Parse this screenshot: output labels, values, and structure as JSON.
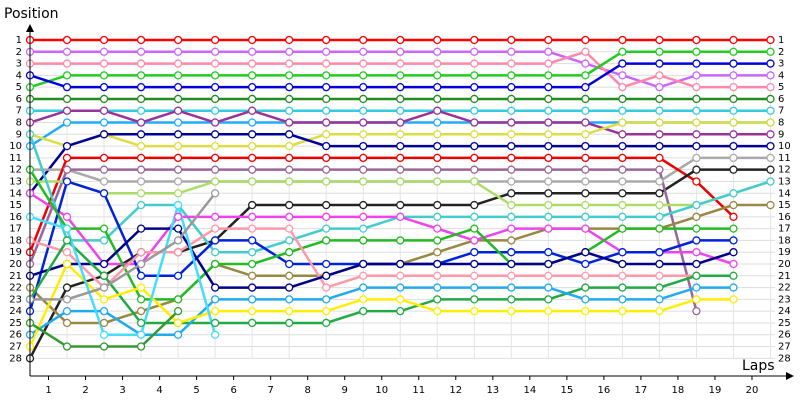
{
  "chart_data": {
    "type": "line",
    "y_label": "Position",
    "x_label": "Laps",
    "x": [
      0,
      1,
      2,
      3,
      4,
      5,
      6,
      7,
      8,
      9,
      10,
      11,
      12,
      13,
      14,
      15,
      16,
      17,
      18,
      19,
      20
    ],
    "xlim": [
      0,
      20.5
    ],
    "xticks": [
      {
        "value": 0.5,
        "label": "1"
      },
      {
        "value": 1.5,
        "label": "2"
      },
      {
        "value": 2.5,
        "label": "3"
      },
      {
        "value": 3.5,
        "label": "4"
      },
      {
        "value": 4.5,
        "label": "5"
      },
      {
        "value": 5.5,
        "label": "6"
      },
      {
        "value": 6.5,
        "label": "7"
      },
      {
        "value": 7.5,
        "label": "8"
      },
      {
        "value": 8.5,
        "label": "9"
      },
      {
        "value": 9.5,
        "label": "10"
      },
      {
        "value": 10.5,
        "label": "11"
      },
      {
        "value": 11.5,
        "label": "12"
      },
      {
        "value": 12.5,
        "label": "13"
      },
      {
        "value": 13.5,
        "label": "14"
      },
      {
        "value": 14.5,
        "label": "15"
      },
      {
        "value": 15.5,
        "label": "16"
      },
      {
        "value": 16.5,
        "label": "17"
      },
      {
        "value": 17.5,
        "label": "18"
      },
      {
        "value": 18.5,
        "label": "19"
      },
      {
        "value": 19.5,
        "label": "20"
      }
    ],
    "ylim": [
      0,
      29.5
    ],
    "y_inverted": true,
    "yticks": [
      1,
      2,
      3,
      4,
      5,
      6,
      7,
      8,
      9,
      10,
      11,
      12,
      13,
      14,
      15,
      16,
      17,
      18,
      19,
      20,
      21,
      22,
      23,
      24,
      25,
      26,
      27,
      28
    ],
    "grid": true,
    "series": [
      {
        "color": "#ff0000",
        "values": [
          1,
          1,
          1,
          1,
          1,
          1,
          1,
          1,
          1,
          1,
          1,
          1,
          1,
          1,
          1,
          1,
          1,
          1,
          1,
          1,
          1
        ]
      },
      {
        "color": "#cc66ff",
        "values": [
          2,
          2,
          2,
          2,
          2,
          2,
          2,
          2,
          2,
          2,
          2,
          2,
          2,
          2,
          2,
          3,
          4,
          5,
          4,
          4,
          4
        ]
      },
      {
        "color": "#ff88aa",
        "values": [
          3,
          3,
          3,
          3,
          3,
          3,
          3,
          3,
          3,
          3,
          3,
          3,
          3,
          3,
          3,
          2,
          5,
          4,
          5,
          5,
          5
        ]
      },
      {
        "color": "#22cc22",
        "values": [
          5,
          4,
          4,
          4,
          4,
          4,
          4,
          4,
          4,
          4,
          4,
          4,
          4,
          4,
          4,
          4,
          2,
          2,
          2,
          2,
          2
        ]
      },
      {
        "color": "#0000dd",
        "values": [
          4,
          5,
          5,
          5,
          5,
          5,
          5,
          5,
          5,
          5,
          5,
          5,
          5,
          5,
          5,
          5,
          3,
          3,
          3,
          3,
          3
        ]
      },
      {
        "color": "#228b22",
        "values": [
          6,
          6,
          6,
          6,
          6,
          6,
          6,
          6,
          6,
          6,
          6,
          6,
          6,
          6,
          6,
          6,
          6,
          6,
          6,
          6,
          6
        ]
      },
      {
        "color": "#33ccdd",
        "values": [
          7,
          7,
          7,
          7,
          7,
          7,
          7,
          7,
          7,
          7,
          7,
          7,
          7,
          7,
          7,
          7,
          7,
          7,
          7,
          7,
          7
        ]
      },
      {
        "color": "#22aaff",
        "values": [
          10,
          8,
          8,
          8,
          8,
          8,
          8,
          8,
          8,
          8,
          8,
          8,
          8,
          8,
          8,
          8,
          8,
          8,
          8,
          8,
          8
        ]
      },
      {
        "color": "#993399",
        "values": [
          8,
          7,
          7,
          8,
          7,
          8,
          7,
          8,
          8,
          8,
          8,
          7,
          8,
          8,
          8,
          8,
          9,
          9,
          9,
          9,
          9
        ]
      },
      {
        "color": "#dddd44",
        "values": [
          9,
          10,
          9,
          10,
          10,
          10,
          10,
          10,
          9,
          9,
          9,
          9,
          9,
          9,
          9,
          9,
          8,
          8,
          8,
          8,
          8
        ]
      },
      {
        "color": "#000099",
        "values": [
          14,
          10,
          9,
          9,
          9,
          9,
          9,
          9,
          10,
          10,
          10,
          10,
          10,
          10,
          10,
          10,
          10,
          10,
          10,
          10,
          10
        ]
      },
      {
        "color": "#aaaaaa",
        "values": [
          12,
          12,
          13,
          13,
          13,
          13,
          13,
          13,
          13,
          13,
          13,
          13,
          13,
          13,
          13,
          13,
          13,
          13,
          11,
          11,
          11
        ]
      },
      {
        "color": "#ee0000",
        "values": [
          19,
          11,
          11,
          11,
          11,
          11,
          11,
          11,
          11,
          11,
          11,
          11,
          11,
          11,
          11,
          11,
          11,
          11,
          13,
          16,
          null
        ]
      },
      {
        "color": "#222222",
        "values": [
          28,
          22,
          21,
          19,
          19,
          18,
          15,
          15,
          15,
          15,
          15,
          15,
          15,
          14,
          14,
          14,
          14,
          14,
          12,
          12,
          12
        ]
      },
      {
        "color": "#996699",
        "values": [
          20,
          12,
          12,
          12,
          12,
          12,
          12,
          12,
          12,
          12,
          12,
          12,
          12,
          12,
          12,
          12,
          12,
          12,
          24,
          null,
          null
        ]
      },
      {
        "color": "#aadd66",
        "values": [
          13,
          13,
          14,
          14,
          14,
          13,
          13,
          13,
          13,
          13,
          13,
          13,
          13,
          15,
          15,
          15,
          15,
          15,
          15,
          14,
          13
        ]
      },
      {
        "color": "#998844",
        "values": [
          22,
          25,
          25,
          24,
          23,
          20,
          21,
          21,
          21,
          20,
          20,
          19,
          18,
          18,
          17,
          17,
          17,
          17,
          16,
          15,
          15
        ]
      },
      {
        "color": "#44cccc",
        "values": [
          9,
          18,
          18,
          15,
          15,
          19,
          19,
          18,
          17,
          17,
          16,
          16,
          16,
          16,
          16,
          16,
          16,
          16,
          15,
          14,
          13
        ]
      },
      {
        "color": "#ee44ee",
        "values": [
          14,
          16,
          20,
          20,
          16,
          16,
          16,
          16,
          16,
          16,
          16,
          17,
          18,
          17,
          17,
          17,
          19,
          19,
          19,
          20,
          null
        ]
      },
      {
        "color": "#0022dd",
        "values": [
          24,
          13,
          14,
          21,
          21,
          18,
          18,
          20,
          20,
          20,
          20,
          20,
          19,
          19,
          19,
          20,
          19,
          19,
          18,
          18,
          null
        ]
      },
      {
        "color": "#22bb22",
        "values": [
          12,
          17,
          17,
          23,
          23,
          20,
          20,
          19,
          18,
          18,
          18,
          18,
          17,
          20,
          20,
          19,
          17,
          17,
          17,
          17,
          null
        ]
      },
      {
        "color": "#ff99aa",
        "values": [
          18,
          19,
          22,
          19,
          19,
          17,
          17,
          17,
          22,
          21,
          21,
          21,
          21,
          21,
          21,
          21,
          21,
          21,
          21,
          null,
          null
        ]
      },
      {
        "color": "#000088",
        "values": [
          21,
          20,
          20,
          17,
          17,
          22,
          22,
          22,
          21,
          20,
          20,
          20,
          20,
          20,
          20,
          19,
          20,
          20,
          20,
          19,
          null
        ]
      },
      {
        "color": "#22aa44",
        "values": [
          23,
          18,
          21,
          25,
          25,
          25,
          25,
          25,
          25,
          24,
          24,
          23,
          23,
          23,
          23,
          22,
          22,
          22,
          21,
          21,
          null
        ]
      },
      {
        "color": "#22aaee",
        "values": [
          26,
          24,
          24,
          26,
          26,
          23,
          23,
          23,
          23,
          22,
          22,
          22,
          22,
          22,
          22,
          23,
          23,
          23,
          22,
          22,
          null
        ]
      },
      {
        "color": "#ffee00",
        "values": [
          27,
          20,
          23,
          22,
          25,
          24,
          24,
          24,
          24,
          23,
          23,
          24,
          24,
          24,
          24,
          24,
          24,
          24,
          23,
          23,
          null
        ]
      },
      {
        "color": "#44ddff",
        "values": [
          16,
          17,
          26,
          26,
          15,
          26,
          null,
          null,
          null,
          null,
          null,
          null,
          null,
          null,
          null,
          null,
          null,
          null,
          null,
          null,
          null
        ]
      },
      {
        "color": "#339933",
        "values": [
          25,
          27,
          27,
          27,
          24,
          null,
          null,
          null,
          null,
          null,
          null,
          null,
          null,
          null,
          null,
          null,
          null,
          null,
          null,
          null,
          null
        ]
      },
      {
        "color": "#999999",
        "values": [
          23,
          23,
          22,
          20,
          18,
          14,
          null,
          null,
          null,
          null,
          null,
          null,
          null,
          null,
          null,
          null,
          null,
          null,
          null,
          null,
          null
        ]
      }
    ]
  }
}
